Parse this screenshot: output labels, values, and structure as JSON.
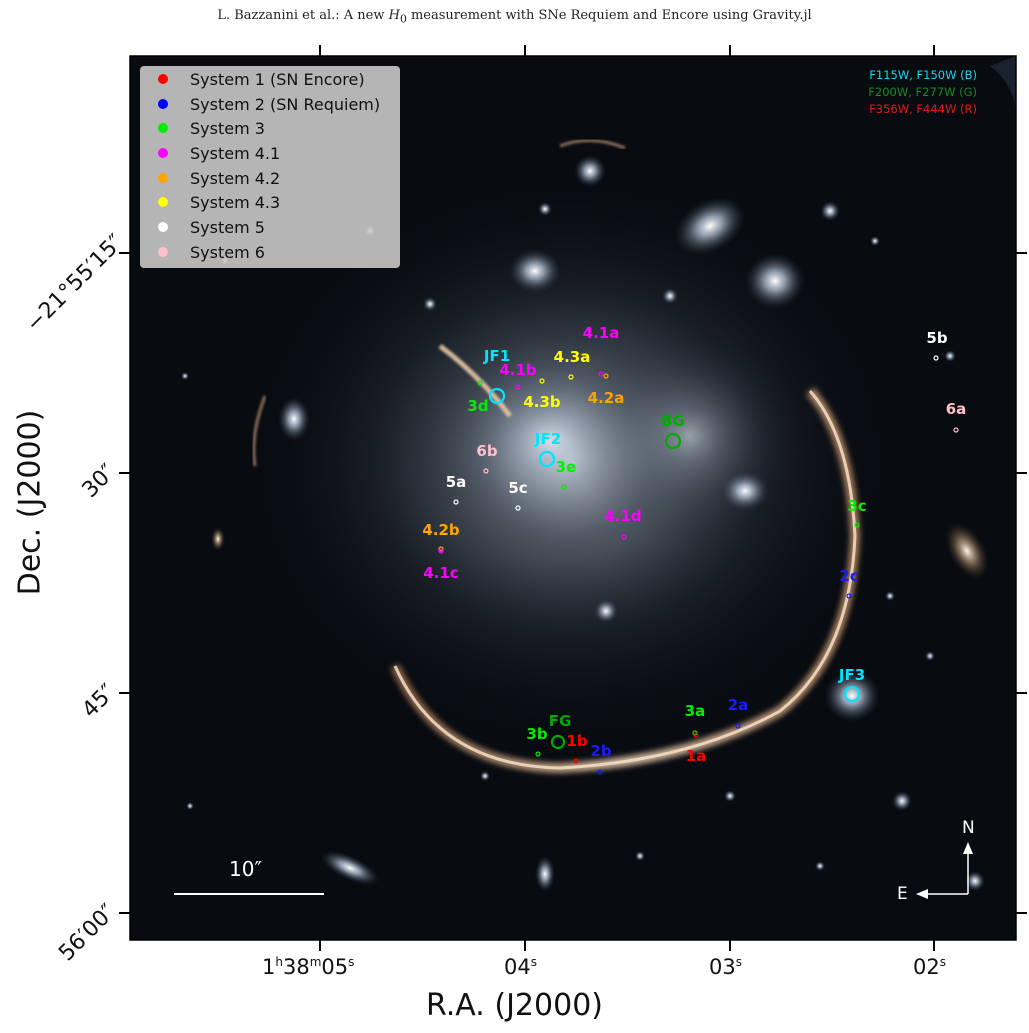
{
  "header": {
    "prefix": "L. Bazzanini et al.: A new ",
    "h0": "H",
    "h0_sub": "0",
    "suffix": " measurement with SNe Requiem and Encore using Gravity.jl"
  },
  "axes": {
    "xlabel": "R.A. (J2000)",
    "ylabel": "Dec. (J2000)",
    "xticks": [
      {
        "base": "1",
        "u1": "h",
        "mid": "38",
        "u2": "m",
        "last": "05",
        "u3": "s"
      },
      {
        "base": "04",
        "u1": "s"
      },
      {
        "base": "03",
        "u1": "s"
      },
      {
        "base": "02",
        "u1": "s"
      }
    ],
    "yticks": [
      "−21°55′15″",
      "30″",
      "45″",
      "56′00″"
    ]
  },
  "legend": {
    "items": [
      {
        "label": "System 1 (SN Encore)",
        "color": "#ff0000"
      },
      {
        "label": "System 2 (SN Requiem)",
        "color": "#0000ff"
      },
      {
        "label": "System 3",
        "color": "#00ee00"
      },
      {
        "label": "System 4.1",
        "color": "#ff00ff"
      },
      {
        "label": "System 4.2",
        "color": "#ffa500"
      },
      {
        "label": "System 4.3",
        "color": "#ffff00"
      },
      {
        "label": "System 5",
        "color": "#ffffff"
      },
      {
        "label": "System 6",
        "color": "#ffc0cb"
      }
    ]
  },
  "filters": [
    {
      "text": "F115W, F150W (B)",
      "color": "#19d6f0"
    },
    {
      "text": "F200W, F277W (G)",
      "color": "#1a8c1a"
    },
    {
      "text": "F356W, F444W (R)",
      "color": "#e21a1a"
    }
  ],
  "labels": {
    "l_4_1a": {
      "text": "4.1a",
      "color": "#ff00ff"
    },
    "l_4_3a": {
      "text": "4.3a",
      "color": "#ffff00"
    },
    "l_jf1": {
      "text": "JF1",
      "color": "#00e5ff"
    },
    "l_4_1b": {
      "text": "4.1b",
      "color": "#ff00ff"
    },
    "l_4_3b": {
      "text": "4.3b",
      "color": "#ffff00"
    },
    "l_4_2a": {
      "text": "4.2a",
      "color": "#ffa500"
    },
    "l_3d": {
      "text": "3d",
      "color": "#00ee00"
    },
    "l_bg": {
      "text": "BG",
      "color": "#00aa00"
    },
    "l_jf2": {
      "text": "JF2",
      "color": "#00e5ff"
    },
    "l_6b": {
      "text": "6b",
      "color": "#ffc0cb"
    },
    "l_3e": {
      "text": "3e",
      "color": "#00ee00"
    },
    "l_5a": {
      "text": "5a",
      "color": "#ffffff"
    },
    "l_5c": {
      "text": "5c",
      "color": "#ffffff"
    },
    "l_4_1d": {
      "text": "4.1d",
      "color": "#ff00ff"
    },
    "l_4_2b": {
      "text": "4.2b",
      "color": "#ffa500"
    },
    "l_4_1c": {
      "text": "4.1c",
      "color": "#ff00ff"
    },
    "l_5b": {
      "text": "5b",
      "color": "#ffffff"
    },
    "l_6a": {
      "text": "6a",
      "color": "#ffc0cb"
    },
    "l_3c": {
      "text": "3c",
      "color": "#00ee00"
    },
    "l_2c": {
      "text": "2c",
      "color": "#1a1aff"
    },
    "l_jf3": {
      "text": "JF3",
      "color": "#00e5ff"
    },
    "l_2a": {
      "text": "2a",
      "color": "#1a1aff"
    },
    "l_3a": {
      "text": "3a",
      "color": "#00ee00"
    },
    "l_fg": {
      "text": "FG",
      "color": "#00aa00"
    },
    "l_3b": {
      "text": "3b",
      "color": "#00ee00"
    },
    "l_1b": {
      "text": "1b",
      "color": "#ff0000"
    },
    "l_2b": {
      "text": "2b",
      "color": "#1a1aff"
    },
    "l_1a": {
      "text": "1a",
      "color": "#ff0000"
    }
  },
  "scalebar": {
    "label": "10″"
  },
  "compass": {
    "north": "N",
    "east": "E"
  }
}
